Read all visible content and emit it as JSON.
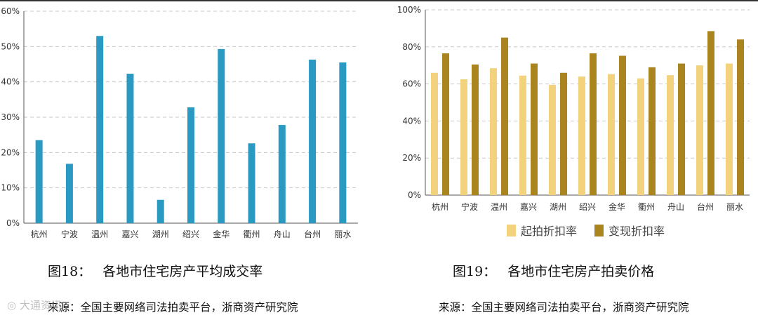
{
  "figures": [
    {
      "caption_num": "图18：",
      "caption_title": "各地市住宅房产平均成交率",
      "source": "来源：全国主要网络司法拍卖平台，浙商资产研究院"
    },
    {
      "caption_num": "图19：",
      "caption_title": "各地市住宅房产拍卖价格",
      "source": "来源：全国主要网络司法拍卖平台，浙商资产研究院"
    }
  ],
  "watermark": "大通资讯",
  "chart_data": [
    {
      "type": "bar",
      "categories": [
        "杭州",
        "宁波",
        "温州",
        "嘉兴",
        "湖州",
        "绍兴",
        "金华",
        "衢州",
        "舟山",
        "台州",
        "丽水"
      ],
      "series": [
        {
          "values": [
            23.5,
            16.8,
            53,
            42.3,
            6.6,
            32.8,
            49.3,
            22.6,
            27.8,
            46.3,
            45.5
          ],
          "color": "#2b9ac2"
        }
      ],
      "ylim": [
        0,
        60
      ],
      "yticks": [
        "0%",
        "10%",
        "20%",
        "30%",
        "40%",
        "50%",
        "60%"
      ],
      "grid": true,
      "legend": "none"
    },
    {
      "type": "bar",
      "categories": [
        "杭州",
        "宁波",
        "温州",
        "嘉兴",
        "湖州",
        "绍兴",
        "金华",
        "衢州",
        "舟山",
        "台州",
        "丽水"
      ],
      "series": [
        {
          "name": "起拍折扣率",
          "values": [
            66,
            62.5,
            68.5,
            64.5,
            59.5,
            64,
            65.3,
            63,
            64.7,
            70,
            71
          ],
          "color": "#f3d27e"
        },
        {
          "name": "变现折扣率",
          "values": [
            76.5,
            70.5,
            85,
            71,
            66,
            76.5,
            75.2,
            69,
            71,
            88.5,
            84
          ],
          "color": "#a9841f"
        }
      ],
      "ylim": [
        0,
        100
      ],
      "yticks": [
        "0%",
        "20%",
        "40%",
        "60%",
        "80%",
        "100%"
      ],
      "grid": true,
      "legend": "bottom"
    }
  ]
}
